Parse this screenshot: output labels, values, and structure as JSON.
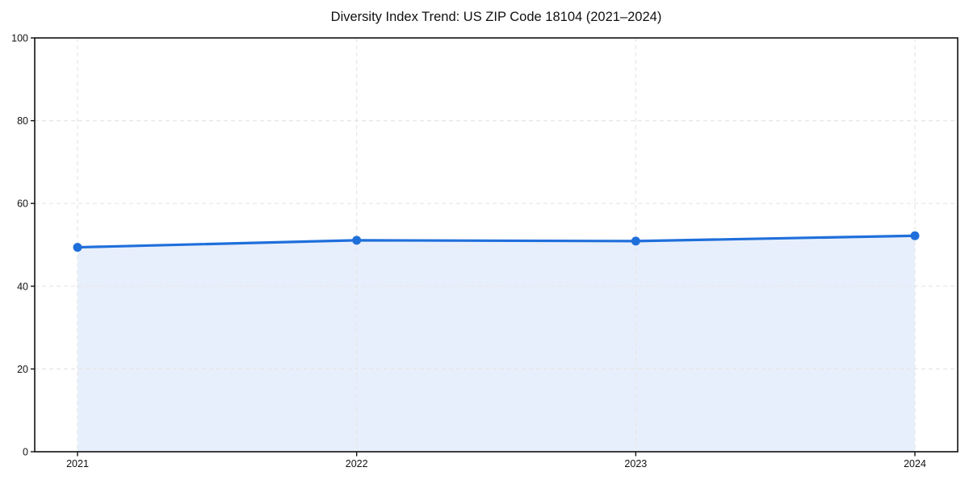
{
  "page": {
    "background_color": "#ffffff"
  },
  "chart_data": {
    "type": "line",
    "title": "Diversity Index Trend: US ZIP Code 18104 (2021–2024)",
    "x": [
      "2021",
      "2022",
      "2023",
      "2024"
    ],
    "series": [
      {
        "name": "Diversity Index",
        "values": [
          49.4,
          51.1,
          50.9,
          52.2
        ]
      }
    ],
    "xlabel": "",
    "ylabel": "",
    "ylim": [
      0,
      100
    ],
    "yticks": [
      0,
      20,
      40,
      60,
      80,
      100
    ],
    "grid": true,
    "grid_style": "dashed",
    "legend": false,
    "area_fill": true,
    "markers": true,
    "colors": {
      "line": "#1f6fdb",
      "marker": "#1f6fdb",
      "area_fill": "#e8effc",
      "grid": "#e6e6e6",
      "axis": "#111111",
      "tick_label": "#111111",
      "title": "#111111",
      "background": "#ffffff"
    }
  }
}
